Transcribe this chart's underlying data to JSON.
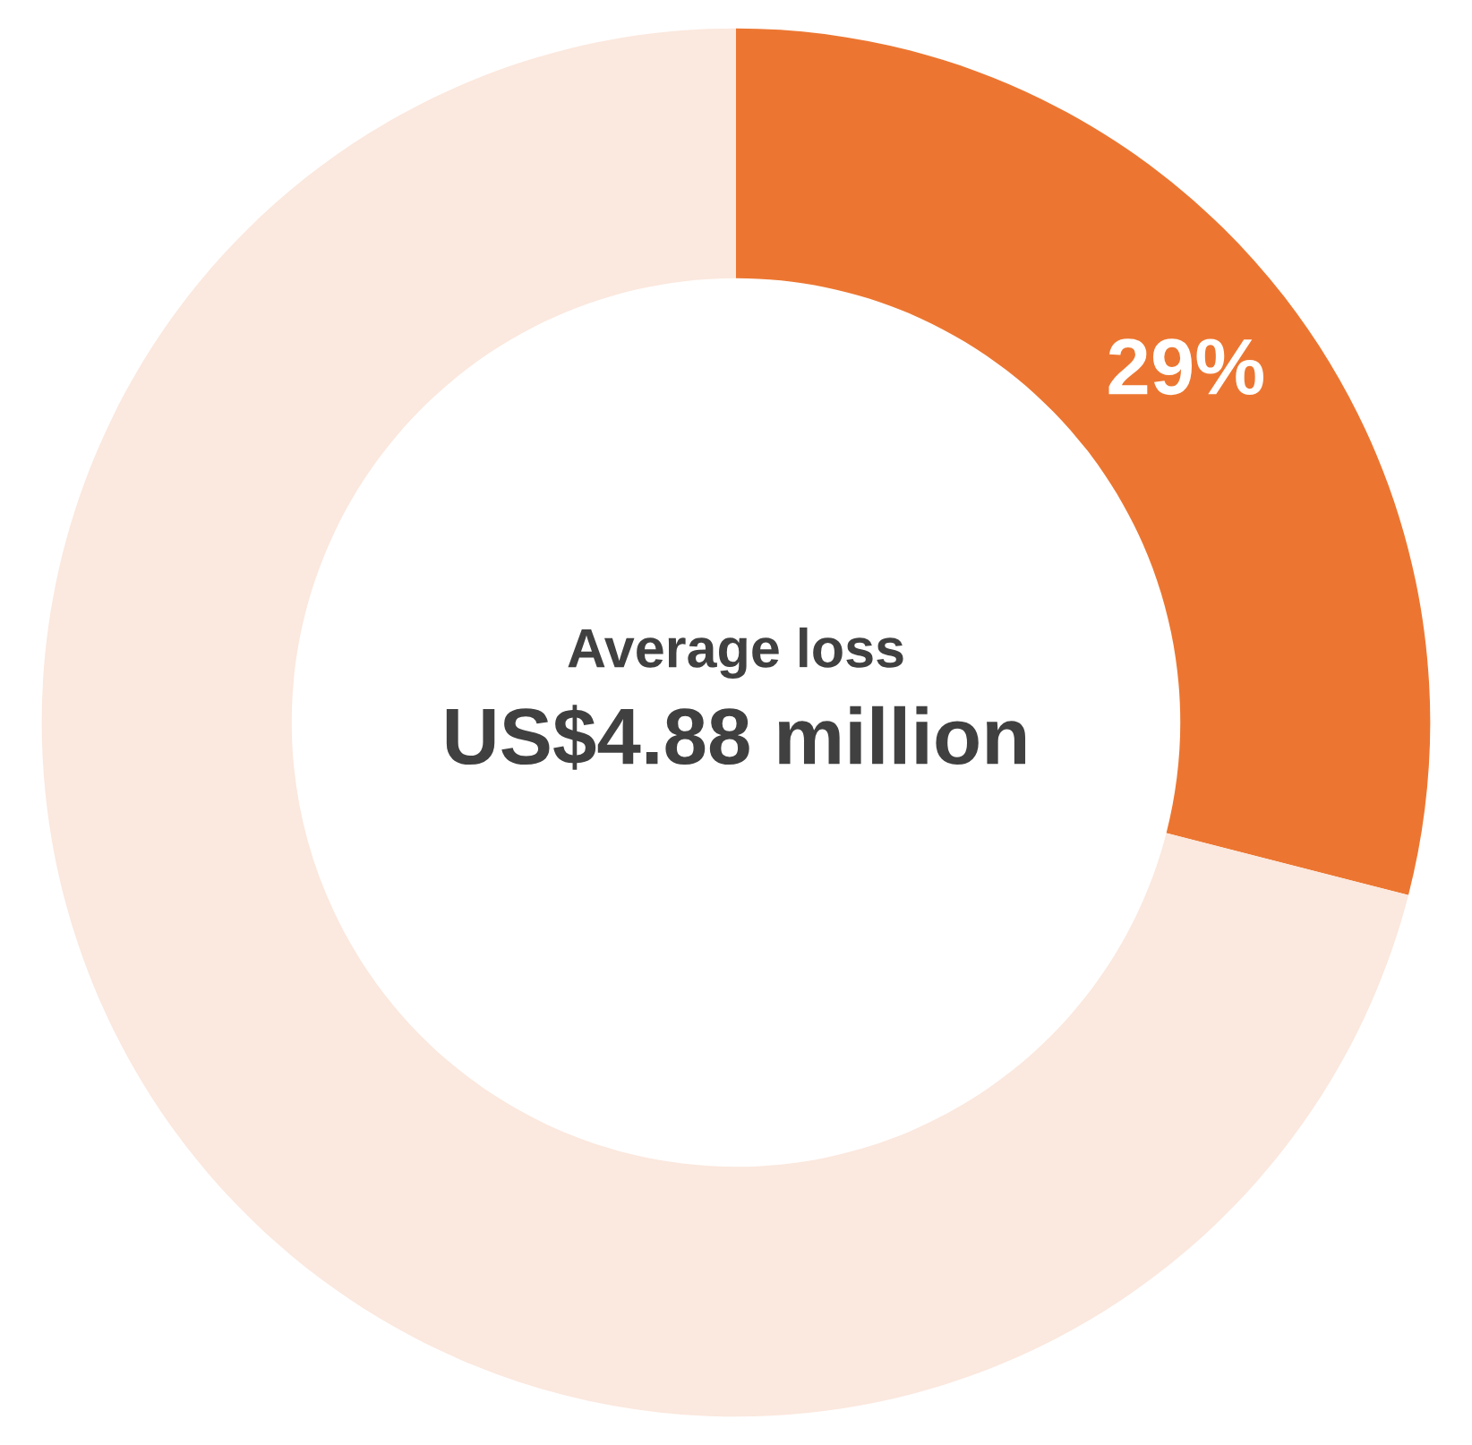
{
  "chart_data": {
    "type": "donut",
    "categories": [
      null,
      null
    ],
    "values": [
      29,
      71
    ],
    "colors": [
      "#ec7631",
      "#fbe8de"
    ],
    "value_labels": [
      "29%",
      null
    ],
    "annotations": [
      "Average loss",
      "US$4.88 million"
    ]
  }
}
